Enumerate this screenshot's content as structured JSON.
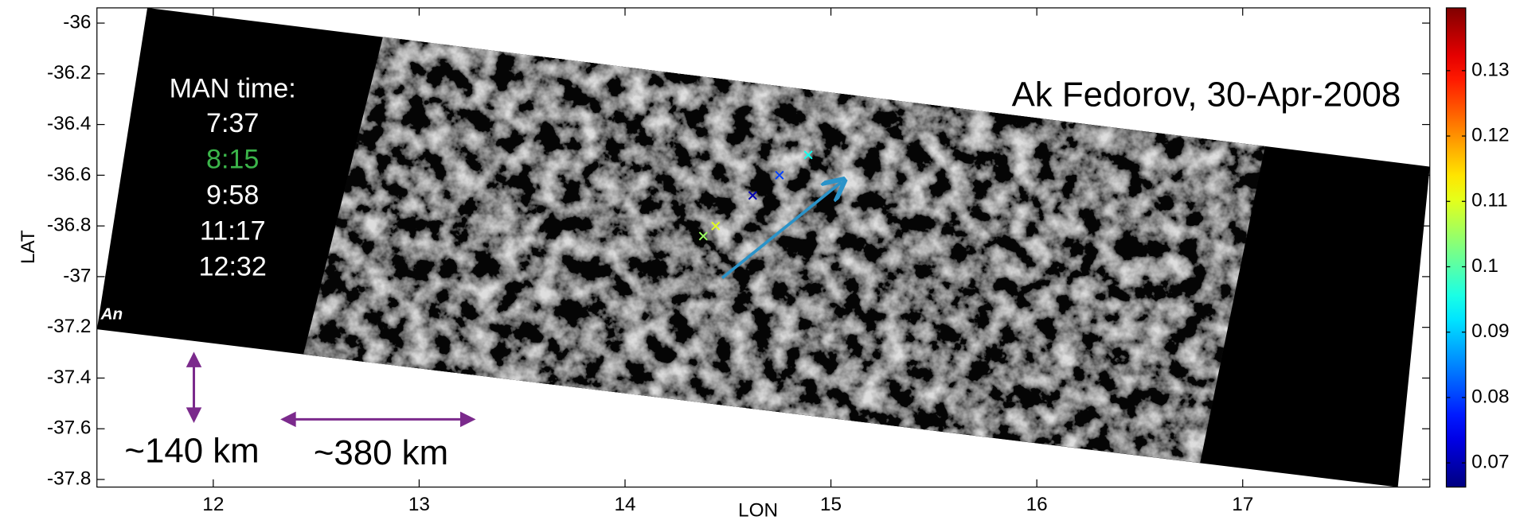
{
  "chart_data": {
    "type": "scatter",
    "title": "Ak Fedorov, 30-Apr-2008",
    "x_label": "LON",
    "y_label": "LAT",
    "xlim": [
      11.435,
      17.909
    ],
    "ylim": [
      -37.83,
      -35.94
    ],
    "xticks": [
      12,
      13,
      14,
      15,
      16,
      17
    ],
    "yticks": [
      -36,
      -36.2,
      -36.4,
      -36.6,
      -36.8,
      -37,
      -37.2,
      -37.4,
      -37.6,
      -37.8
    ],
    "x": [
      14.89,
      14.75,
      14.62,
      14.44,
      14.38
    ],
    "y": [
      -36.52,
      -36.6,
      -36.68,
      -36.8,
      -36.84
    ],
    "color_values": [
      0.095,
      0.08,
      0.07,
      0.11,
      0.105
    ],
    "colorbar": {
      "colormap": "jet",
      "clim": [
        0.0663,
        0.1396
      ],
      "ticks": [
        0.07,
        0.08,
        0.09,
        0.1,
        0.11,
        0.12,
        0.13
      ]
    },
    "man_time_label": "MAN time:",
    "times": [
      "7:37",
      "8:15",
      "9:58",
      "11:17",
      "12:32"
    ],
    "highlight_index": 1,
    "highlight_color": "#3bb54a",
    "corner_label": "An",
    "scale_labels": [
      "~140 km",
      "~380 km"
    ]
  }
}
